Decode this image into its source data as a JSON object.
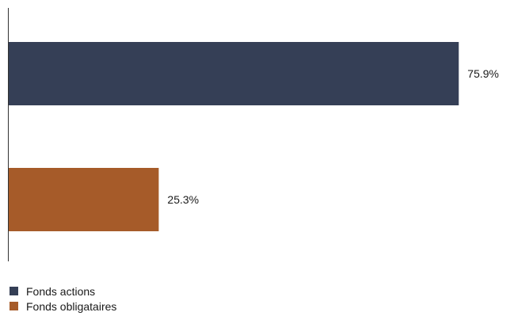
{
  "chart_data": {
    "type": "bar",
    "orientation": "horizontal",
    "categories": [
      "Fonds actions",
      "Fonds obligataires"
    ],
    "values": [
      75.9,
      25.3
    ],
    "value_labels": [
      "75.9%",
      "25.3%"
    ],
    "colors": [
      "#353f56",
      "#a65b29"
    ],
    "xlim": [
      0,
      80
    ],
    "grid": false,
    "legend_position": "bottom-left"
  },
  "legend": {
    "items": [
      {
        "label": "Fonds actions",
        "color": "#353f56"
      },
      {
        "label": "Fonds obligataires",
        "color": "#a65b29"
      }
    ]
  }
}
